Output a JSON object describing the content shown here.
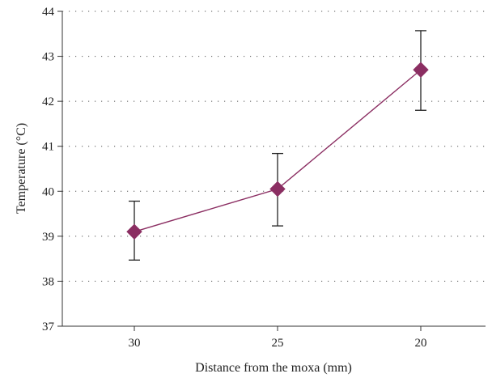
{
  "chart_data": {
    "type": "line",
    "title": "",
    "xlabel": "Distance from the moxa (mm)",
    "ylabel": "Temperature (°C)",
    "categories": [
      "30",
      "25",
      "20"
    ],
    "ylim": [
      37,
      44
    ],
    "yticks": [
      37,
      38,
      39,
      40,
      41,
      42,
      43,
      44
    ],
    "grid": "horizontal dotted",
    "legend": "none",
    "series": [
      {
        "values": [
          39.1,
          40.05,
          42.7
        ],
        "error_low": [
          38.47,
          39.23,
          41.8
        ],
        "error_high": [
          39.78,
          40.84,
          43.57
        ],
        "marker": "diamond",
        "color": "#8B2E62"
      }
    ]
  }
}
